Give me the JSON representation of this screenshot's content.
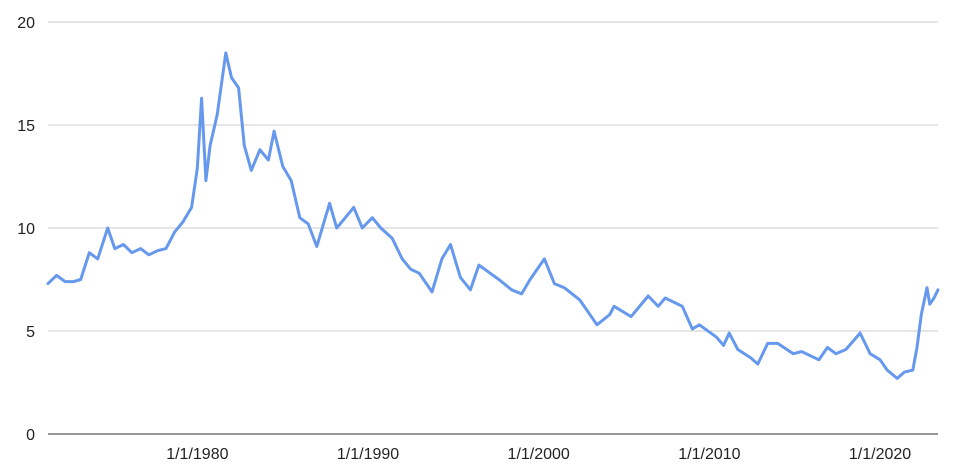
{
  "chart_data": {
    "type": "line",
    "title": "",
    "xlabel": "",
    "ylabel": "",
    "x_type": "date",
    "xlim": [
      "1971-04-02",
      "2023-05-25"
    ],
    "ylim": [
      0,
      20
    ],
    "grid": true,
    "legend": "none",
    "colors": {
      "line": "#6699ee",
      "grid": "#cccccc",
      "axis": "#333333",
      "text": "#222222"
    },
    "y_ticks": [
      0,
      5,
      10,
      15,
      20
    ],
    "x_ticks": [
      {
        "date": "1980-01-01",
        "label": "1/1/1980"
      },
      {
        "date": "1990-01-01",
        "label": "1/1/1990"
      },
      {
        "date": "2000-01-01",
        "label": "1/1/2000"
      },
      {
        "date": "2010-01-01",
        "label": "1/1/2010"
      },
      {
        "date": "2020-01-01",
        "label": "1/1/2020"
      }
    ],
    "series": [
      {
        "points": [
          [
            "1971-04-02",
            7.3
          ],
          [
            "1971-10-01",
            7.7
          ],
          [
            "1972-04-01",
            7.4
          ],
          [
            "1972-10-01",
            7.4
          ],
          [
            "1973-03-01",
            7.5
          ],
          [
            "1973-09-01",
            8.8
          ],
          [
            "1974-03-01",
            8.5
          ],
          [
            "1974-10-01",
            10.0
          ],
          [
            "1975-03-01",
            9.0
          ],
          [
            "1975-09-01",
            9.2
          ],
          [
            "1976-03-01",
            8.8
          ],
          [
            "1976-09-01",
            9.0
          ],
          [
            "1977-03-01",
            8.7
          ],
          [
            "1977-09-01",
            8.9
          ],
          [
            "1978-03-01",
            9.0
          ],
          [
            "1978-09-01",
            9.8
          ],
          [
            "1979-03-01",
            10.3
          ],
          [
            "1979-09-01",
            11.0
          ],
          [
            "1980-01-01",
            12.9
          ],
          [
            "1980-04-01",
            16.3
          ],
          [
            "1980-07-01",
            12.3
          ],
          [
            "1980-10-01",
            14.0
          ],
          [
            "1981-03-01",
            15.5
          ],
          [
            "1981-09-01",
            18.5
          ],
          [
            "1982-01-01",
            17.3
          ],
          [
            "1982-06-01",
            16.8
          ],
          [
            "1982-10-01",
            14.0
          ],
          [
            "1983-03-01",
            12.8
          ],
          [
            "1983-09-01",
            13.8
          ],
          [
            "1984-03-01",
            13.3
          ],
          [
            "1984-07-01",
            14.7
          ],
          [
            "1985-01-01",
            13.0
          ],
          [
            "1985-07-01",
            12.3
          ],
          [
            "1986-01-01",
            10.5
          ],
          [
            "1986-07-01",
            10.2
          ],
          [
            "1987-01-01",
            9.1
          ],
          [
            "1987-07-01",
            10.5
          ],
          [
            "1987-10-01",
            11.2
          ],
          [
            "1988-03-01",
            10.0
          ],
          [
            "1988-09-01",
            10.5
          ],
          [
            "1989-03-01",
            11.0
          ],
          [
            "1989-09-01",
            10.0
          ],
          [
            "1990-04-01",
            10.5
          ],
          [
            "1990-10-01",
            10.0
          ],
          [
            "1991-06-01",
            9.5
          ],
          [
            "1992-01-01",
            8.5
          ],
          [
            "1992-07-01",
            8.0
          ],
          [
            "1993-01-01",
            7.8
          ],
          [
            "1993-10-01",
            6.9
          ],
          [
            "1994-05-01",
            8.5
          ],
          [
            "1994-11-01",
            9.2
          ],
          [
            "1995-06-01",
            7.6
          ],
          [
            "1996-01-01",
            7.0
          ],
          [
            "1996-07-01",
            8.2
          ],
          [
            "1997-03-01",
            7.8
          ],
          [
            "1997-09-01",
            7.5
          ],
          [
            "1998-06-01",
            7.0
          ],
          [
            "1999-01-01",
            6.8
          ],
          [
            "1999-07-01",
            7.5
          ],
          [
            "2000-05-01",
            8.5
          ],
          [
            "2000-12-01",
            7.3
          ],
          [
            "2001-07-01",
            7.1
          ],
          [
            "2002-06-01",
            6.5
          ],
          [
            "2003-06-01",
            5.3
          ],
          [
            "2004-03-01",
            5.8
          ],
          [
            "2004-06-01",
            6.2
          ],
          [
            "2005-06-01",
            5.7
          ],
          [
            "2006-06-01",
            6.7
          ],
          [
            "2007-01-01",
            6.2
          ],
          [
            "2007-06-01",
            6.6
          ],
          [
            "2008-06-01",
            6.2
          ],
          [
            "2009-01-01",
            5.1
          ],
          [
            "2009-06-01",
            5.3
          ],
          [
            "2010-06-01",
            4.7
          ],
          [
            "2010-11-01",
            4.3
          ],
          [
            "2011-03-01",
            4.9
          ],
          [
            "2011-09-01",
            4.1
          ],
          [
            "2012-06-01",
            3.7
          ],
          [
            "2012-11-01",
            3.4
          ],
          [
            "2013-06-01",
            4.4
          ],
          [
            "2014-01-01",
            4.4
          ],
          [
            "2014-12-01",
            3.9
          ],
          [
            "2015-06-01",
            4.0
          ],
          [
            "2016-06-01",
            3.6
          ],
          [
            "2016-12-01",
            4.2
          ],
          [
            "2017-06-01",
            3.9
          ],
          [
            "2018-01-01",
            4.1
          ],
          [
            "2018-11-01",
            4.9
          ],
          [
            "2019-06-01",
            3.9
          ],
          [
            "2020-01-01",
            3.6
          ],
          [
            "2020-06-01",
            3.1
          ],
          [
            "2021-01-01",
            2.7
          ],
          [
            "2021-06-01",
            3.0
          ],
          [
            "2021-12-01",
            3.1
          ],
          [
            "2022-03-01",
            4.2
          ],
          [
            "2022-06-01",
            5.8
          ],
          [
            "2022-10-01",
            7.1
          ],
          [
            "2022-12-01",
            6.3
          ],
          [
            "2023-03-01",
            6.6
          ],
          [
            "2023-05-25",
            7.0
          ]
        ]
      }
    ]
  }
}
